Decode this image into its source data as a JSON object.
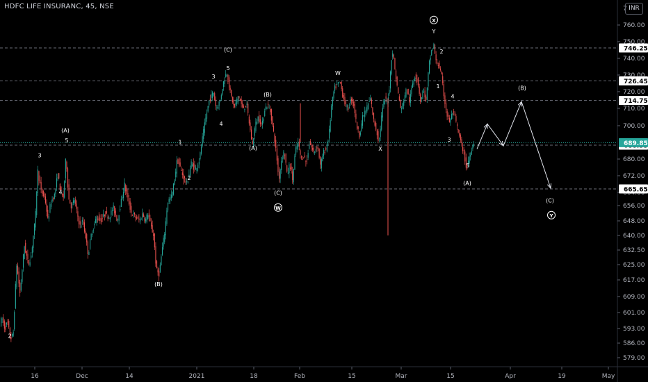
{
  "header": {
    "symbol_line": "HDFC LIFE INSURANC, 45, NSE",
    "currency": "INR",
    "top_partial_label": "7"
  },
  "colors": {
    "background": "#000000",
    "up_candle": "#26a69a",
    "down_candle": "#ef5350",
    "wave_labels": "#ffffff",
    "axis_text": "#b2b5be",
    "hline": "#787b86",
    "badge_bg": "#ffffff",
    "badge_text": "#000000",
    "last_price_bg": "#26a69a"
  },
  "chart_data": {
    "type": "candlestick",
    "timeframe": "45",
    "y_ticks": [
      "760.00",
      "750.00",
      "740.00",
      "730.00",
      "720.00",
      "710.00",
      "700.00",
      "680.00",
      "672.00",
      "664.00",
      "656.00",
      "648.00",
      "640.00",
      "632.50",
      "625.00",
      "617.00",
      "609.00",
      "601.00",
      "593.00",
      "586.00",
      "579.00"
    ],
    "x_ticks": [
      "16",
      "Dec",
      "14",
      "2021",
      "18",
      "Feb",
      "15",
      "Mar",
      "15",
      "Apr",
      "19",
      "May"
    ],
    "horizontal_levels": [
      {
        "value": 746.25,
        "label": "746.25"
      },
      {
        "value": 726.45,
        "label": "726.45"
      },
      {
        "value": 714.75,
        "label": "714.75"
      },
      {
        "value": 688.35,
        "label": "688.35"
      },
      {
        "value": 665.65,
        "label": "665.65"
      }
    ],
    "last_price": {
      "value": 689.85,
      "label": "689.85"
    },
    "price_path": [
      [
        0,
        595
      ],
      [
        4,
        598
      ],
      [
        8,
        593
      ],
      [
        12,
        596
      ],
      [
        16,
        588
      ],
      [
        20,
        590
      ],
      [
        25,
        625
      ],
      [
        30,
        610
      ],
      [
        36,
        635
      ],
      [
        42,
        625
      ],
      [
        46,
        630
      ],
      [
        52,
        650
      ],
      [
        55,
        675
      ],
      [
        60,
        665
      ],
      [
        66,
        660
      ],
      [
        70,
        648
      ],
      [
        74,
        658
      ],
      [
        80,
        663
      ],
      [
        84,
        673
      ],
      [
        88,
        665
      ],
      [
        92,
        660
      ],
      [
        96,
        682
      ],
      [
        100,
        660
      ],
      [
        104,
        655
      ],
      [
        108,
        660
      ],
      [
        112,
        652
      ],
      [
        116,
        645
      ],
      [
        120,
        648
      ],
      [
        124,
        640
      ],
      [
        128,
        630
      ],
      [
        132,
        640
      ],
      [
        136,
        645
      ],
      [
        140,
        650
      ],
      [
        146,
        648
      ],
      [
        152,
        652
      ],
      [
        158,
        650
      ],
      [
        164,
        655
      ],
      [
        170,
        648
      ],
      [
        176,
        660
      ],
      [
        180,
        668
      ],
      [
        185,
        660
      ],
      [
        190,
        652
      ],
      [
        196,
        650
      ],
      [
        202,
        648
      ],
      [
        206,
        652
      ],
      [
        210,
        648
      ],
      [
        214,
        652
      ],
      [
        218,
        645
      ],
      [
        222,
        640
      ],
      [
        226,
        622
      ],
      [
        230,
        620
      ],
      [
        234,
        632
      ],
      [
        238,
        642
      ],
      [
        242,
        658
      ],
      [
        248,
        662
      ],
      [
        252,
        670
      ],
      [
        256,
        680
      ],
      [
        260,
        676
      ],
      [
        264,
        672
      ],
      [
        270,
        668
      ],
      [
        276,
        678
      ],
      [
        282,
        675
      ],
      [
        288,
        680
      ],
      [
        292,
        692
      ],
      [
        296,
        702
      ],
      [
        302,
        715
      ],
      [
        308,
        720
      ],
      [
        312,
        710
      ],
      [
        318,
        715
      ],
      [
        322,
        725
      ],
      [
        327,
        732
      ],
      [
        332,
        720
      ],
      [
        338,
        710
      ],
      [
        344,
        718
      ],
      [
        350,
        710
      ],
      [
        356,
        712
      ],
      [
        360,
        700
      ],
      [
        364,
        688
      ],
      [
        368,
        700
      ],
      [
        372,
        705
      ],
      [
        378,
        700
      ],
      [
        382,
        710
      ],
      [
        386,
        712
      ],
      [
        390,
        708
      ],
      [
        395,
        695
      ],
      [
        398,
        685
      ],
      [
        402,
        670
      ],
      [
        406,
        680
      ],
      [
        410,
        685
      ],
      [
        414,
        672
      ],
      [
        418,
        678
      ],
      [
        422,
        670
      ],
      [
        426,
        685
      ],
      [
        430,
        690
      ],
      [
        434,
        680
      ],
      [
        438,
        682
      ],
      [
        442,
        678
      ],
      [
        446,
        690
      ],
      [
        452,
        684
      ],
      [
        458,
        688
      ],
      [
        462,
        676
      ],
      [
        466,
        684
      ],
      [
        470,
        686
      ],
      [
        474,
        694
      ],
      [
        478,
        712
      ],
      [
        482,
        722
      ],
      [
        486,
        724
      ],
      [
        490,
        726
      ],
      [
        494,
        718
      ],
      [
        498,
        712
      ],
      [
        502,
        710
      ],
      [
        506,
        716
      ],
      [
        510,
        712
      ],
      [
        514,
        700
      ],
      [
        518,
        694
      ],
      [
        522,
        704
      ],
      [
        526,
        708
      ],
      [
        530,
        712
      ],
      [
        534,
        716
      ],
      [
        538,
        704
      ],
      [
        542,
        698
      ],
      [
        546,
        690
      ],
      [
        550,
        706
      ],
      [
        554,
        716
      ],
      [
        558,
        714
      ],
      [
        561,
        722
      ],
      [
        564,
        740
      ],
      [
        566,
        744
      ],
      [
        570,
        730
      ],
      [
        574,
        718
      ],
      [
        578,
        708
      ],
      [
        582,
        716
      ],
      [
        586,
        722
      ],
      [
        590,
        714
      ],
      [
        594,
        724
      ],
      [
        598,
        730
      ],
      [
        602,
        726
      ],
      [
        606,
        714
      ],
      [
        610,
        722
      ],
      [
        614,
        714
      ],
      [
        618,
        736
      ],
      [
        622,
        745
      ],
      [
        625,
        748
      ],
      [
        628,
        738
      ],
      [
        632,
        736
      ],
      [
        636,
        730
      ],
      [
        640,
        716
      ],
      [
        644,
        706
      ],
      [
        648,
        702
      ],
      [
        652,
        708
      ],
      [
        656,
        704
      ],
      [
        660,
        696
      ],
      [
        664,
        690
      ],
      [
        668,
        684
      ],
      [
        672,
        675
      ],
      [
        675,
        680
      ],
      [
        678,
        684
      ],
      [
        682,
        690
      ]
    ],
    "spikes": [
      {
        "x": 558,
        "low": 640,
        "high": 716
      },
      {
        "x": 432,
        "low": 690,
        "high": 713
      }
    ],
    "projection_path": [
      [
        686,
        686
      ],
      [
        701,
        701
      ],
      [
        724,
        688
      ],
      [
        750,
        714
      ],
      [
        792,
        666
      ]
    ],
    "wave_labels": [
      {
        "text": "2",
        "x": 14,
        "price": 588.5
      },
      {
        "text": "3",
        "x": 57,
        "price": 681
      },
      {
        "text": "4",
        "x": 87,
        "price": 663
      },
      {
        "text": "(A)",
        "x": 94,
        "price": 696
      },
      {
        "text": "5",
        "x": 96,
        "price": 690
      },
      {
        "text": "(B)",
        "x": 228,
        "price": 614
      },
      {
        "text": "1",
        "x": 259,
        "price": 689
      },
      {
        "text": "2",
        "x": 272,
        "price": 670
      },
      {
        "text": "3",
        "x": 307,
        "price": 728
      },
      {
        "text": "4",
        "x": 318,
        "price": 700
      },
      {
        "text": "(C)",
        "x": 328,
        "price": 744
      },
      {
        "text": "5",
        "x": 328,
        "price": 733
      },
      {
        "text": "(B)",
        "x": 385,
        "price": 717
      },
      {
        "text": "(A)",
        "x": 364,
        "price": 685.5
      },
      {
        "text": "(C)",
        "x": 400,
        "price": 662.5
      },
      {
        "text": "W",
        "x": 486,
        "price": 730
      },
      {
        "text": "X",
        "x": 547,
        "price": 685
      },
      {
        "text": "Y",
        "x": 624,
        "price": 755
      },
      {
        "text": "2",
        "x": 635,
        "price": 743
      },
      {
        "text": "1",
        "x": 630,
        "price": 722
      },
      {
        "text": "4",
        "x": 651,
        "price": 716
      },
      {
        "text": "3",
        "x": 646,
        "price": 690.5
      },
      {
        "text": "5",
        "x": 673,
        "price": 676
      },
      {
        "text": "(A)",
        "x": 672,
        "price": 667.5
      },
      {
        "text": "(B)",
        "x": 751,
        "price": 721
      },
      {
        "text": "(C)",
        "x": 791,
        "price": 658
      }
    ],
    "circled_labels": [
      {
        "text": "X",
        "x": 624,
        "price": 763
      },
      {
        "text": "W",
        "x": 400,
        "price": 655
      },
      {
        "text": "Y",
        "x": 793,
        "price": 651
      }
    ]
  }
}
